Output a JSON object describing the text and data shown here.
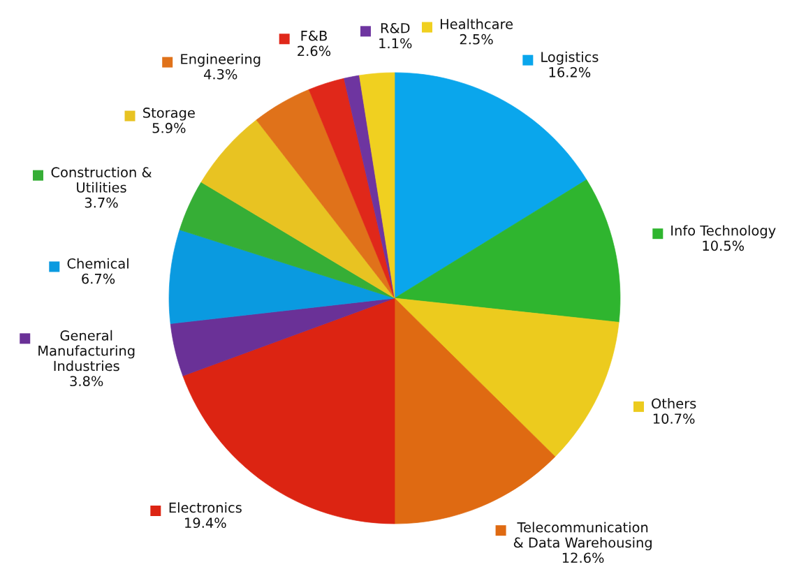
{
  "chart_data": {
    "type": "pie",
    "categories": [
      "Logistics",
      "Info Technology",
      "Others",
      "Telecommunication\n& Data Warehousing",
      "Electronics",
      "General\nManufacturing\nIndustries",
      "Chemical",
      "Construction &\nUtilities",
      "Storage",
      "Engineering",
      "F&B",
      "R&D",
      "Healthcare"
    ],
    "values": [
      16.2,
      10.5,
      10.7,
      12.6,
      19.4,
      3.8,
      6.7,
      3.7,
      5.9,
      4.3,
      2.6,
      1.1,
      2.5
    ],
    "colors": [
      "#0aa6ec",
      "#2fb52f",
      "#eccb1e",
      "#df6a12",
      "#dc2412",
      "#6a3197",
      "#0a9ae0",
      "#36ae36",
      "#e8c322",
      "#e0721a",
      "#e0281a",
      "#6e35a0",
      "#f0d020"
    ],
    "value_labels": [
      "16.2%",
      "10.5%",
      "10.7%",
      "12.6%",
      "19.4%",
      "3.8%",
      "6.7%",
      "3.7%",
      "5.9%",
      "4.3%",
      "2.6%",
      "1.1%",
      "2.5%"
    ],
    "legend": "top right"
  }
}
